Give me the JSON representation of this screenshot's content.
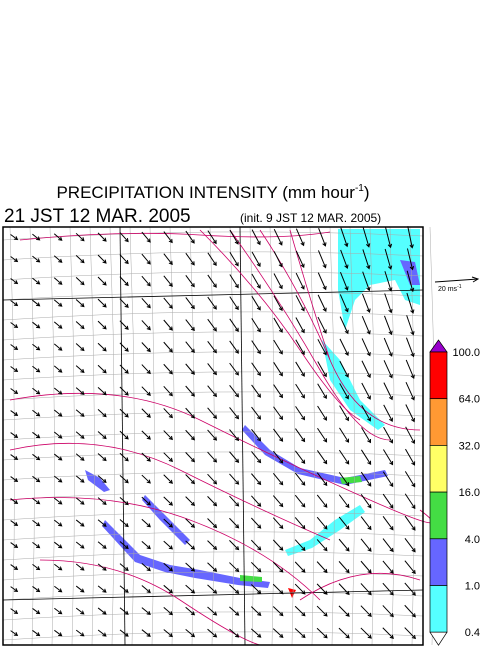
{
  "header": {
    "title": {
      "text": "PRECIPITATION INTENSITY (mm hour",
      "sup": "-1",
      "close": ")"
    },
    "time": "21 JST 12 MAR. 2005",
    "init": "(init. 9 JST 12 MAR. 2005)"
  },
  "wind_scale": {
    "text": "20 ms",
    "sup": "-1"
  },
  "colorbar": {
    "top_color": "#9900cc",
    "bottom_color": "#ffffff",
    "levels": [
      {
        "label": "100.0",
        "color": "#ff0000"
      },
      {
        "label": "64.0",
        "color": "#ff9933"
      },
      {
        "label": "32.0",
        "color": "#ffff66"
      },
      {
        "label": "16.0",
        "color": "#44dd44"
      },
      {
        "label": "4.0",
        "color": "#6666ff"
      },
      {
        "label": "1.0",
        "color": "#55ffff"
      },
      {
        "label": "0.4",
        "color": null
      }
    ]
  }
}
